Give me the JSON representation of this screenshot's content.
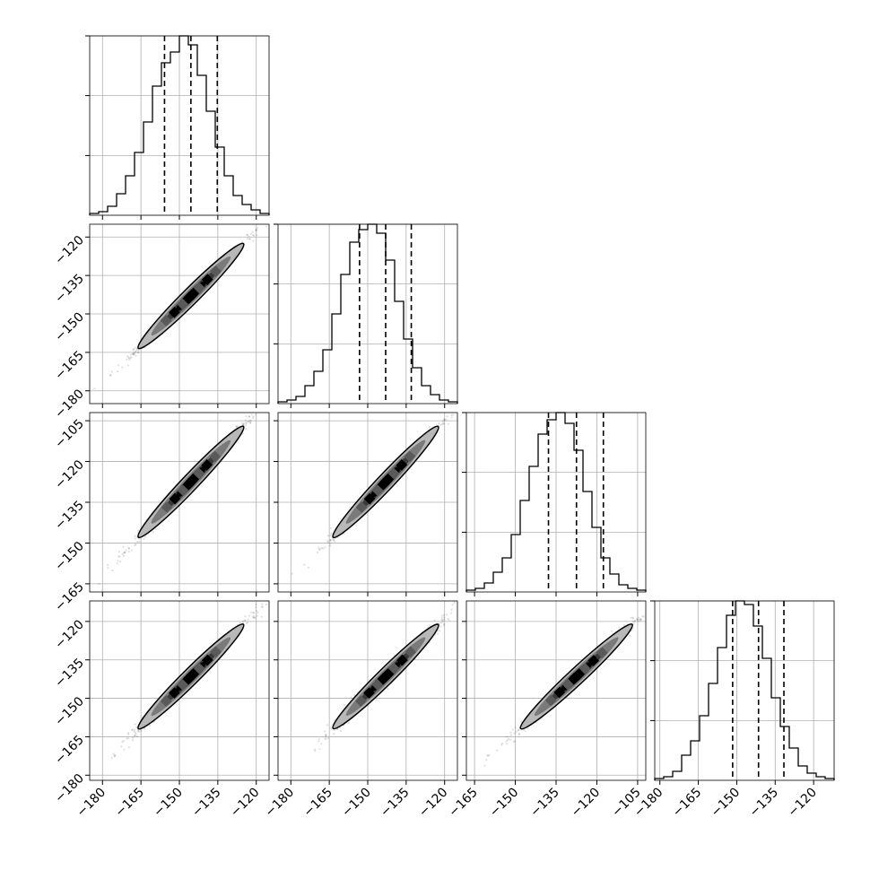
{
  "chart_data": {
    "type": "corner",
    "n_params": 4,
    "grid": true,
    "colors": {
      "ink": "#000000",
      "grid": "#b0b0b0",
      "background": "#ffffff"
    },
    "params": [
      {
        "median": -145.5,
        "q16": -155.8,
        "q84": -135.2,
        "std": 10.8,
        "range": [
          -185,
          -115
        ],
        "ticks": [
          -180,
          -165,
          -150,
          -135,
          -120
        ],
        "tick_labels": [
          "−180",
          "−165",
          "−150",
          "−135",
          "−120"
        ]
      },
      {
        "median": -143.0,
        "q16": -153.2,
        "q84": -133.0,
        "std": 10.8,
        "range": [
          -185,
          -115
        ],
        "ticks": [
          -180,
          -165,
          -150,
          -135,
          -120
        ],
        "tick_labels": [
          "−180",
          "−165",
          "−150",
          "−135",
          "−120"
        ]
      },
      {
        "median": -127.5,
        "q16": -137.8,
        "q84": -117.6,
        "std": 10.8,
        "range": [
          -168,
          -102
        ],
        "ticks": [
          -165,
          -150,
          -135,
          -120,
          -105
        ],
        "tick_labels": [
          "−165",
          "−150",
          "−135",
          "−120",
          "−105"
        ]
      },
      {
        "median": -141.5,
        "q16": -151.6,
        "q84": -131.6,
        "std": 10.8,
        "range": [
          -182,
          -112
        ],
        "ticks": [
          -180,
          -165,
          -150,
          -135,
          -120
        ],
        "tick_labels": [
          "−180",
          "−165",
          "−150",
          "−135",
          "−120"
        ]
      }
    ],
    "histograms": [
      {
        "param": 0,
        "bin_start": -185,
        "bin_width": 3.5,
        "counts": [
          1,
          2,
          5,
          12,
          22,
          35,
          52,
          72,
          85,
          91,
          100,
          95,
          78,
          58,
          38,
          22,
          11,
          6,
          3,
          1
        ]
      },
      {
        "param": 1,
        "bin_start": -185,
        "bin_width": 3.5,
        "counts": [
          1,
          2,
          4,
          10,
          18,
          30,
          50,
          72,
          90,
          97,
          100,
          95,
          80,
          57,
          36,
          20,
          10,
          5,
          2,
          1
        ]
      },
      {
        "param": 2,
        "bin_start": -168,
        "bin_width": 3.3,
        "counts": [
          1,
          2,
          5,
          11,
          19,
          32,
          51,
          70,
          88,
          96,
          100,
          94,
          79,
          56,
          36,
          19,
          10,
          4,
          2,
          1
        ]
      },
      {
        "param": 3,
        "bin_start": -182,
        "bin_width": 3.5,
        "counts": [
          1,
          2,
          5,
          14,
          22,
          36,
          54,
          74,
          92,
          100,
          98,
          86,
          68,
          46,
          30,
          18,
          8,
          4,
          2,
          1
        ]
      }
    ],
    "pairs": [
      {
        "row": 1,
        "col": 0,
        "correlation": 0.995
      },
      {
        "row": 2,
        "col": 0,
        "correlation": 0.993
      },
      {
        "row": 2,
        "col": 1,
        "correlation": 0.994
      },
      {
        "row": 3,
        "col": 0,
        "correlation": 0.992
      },
      {
        "row": 3,
        "col": 1,
        "correlation": 0.988
      },
      {
        "row": 3,
        "col": 2,
        "correlation": 0.991
      }
    ],
    "density_levels": [
      "#000000",
      "#3a3a3a",
      "#7a7a7a",
      "#b8b8b8"
    ]
  }
}
